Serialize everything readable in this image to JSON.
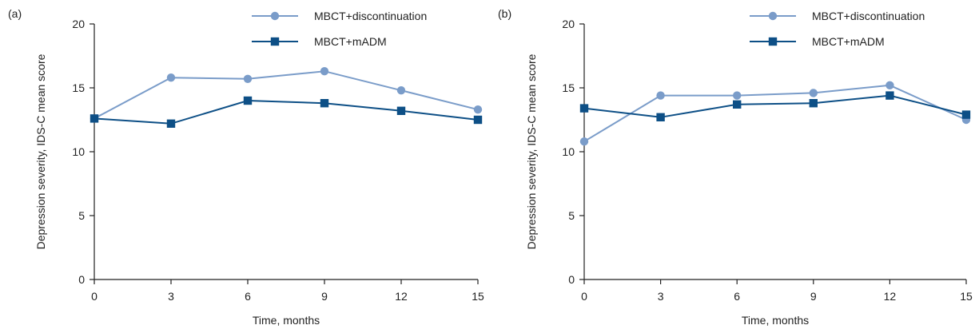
{
  "chart_data": [
    {
      "type": "line",
      "panel_label": "(a)",
      "xlabel": "Time, months",
      "ylabel": "Depression severity, IDS-C mean score",
      "x": [
        0,
        3,
        6,
        9,
        12,
        15
      ],
      "xticks": [
        "0",
        "3",
        "6",
        "9",
        "12",
        "15"
      ],
      "yticks": [
        "0",
        "5",
        "10",
        "15",
        "20"
      ],
      "xlim": [
        0,
        15
      ],
      "ylim": [
        0,
        20
      ],
      "grid": false,
      "legend_position": "top-right",
      "series": [
        {
          "name": "MBCT+discontinuation",
          "marker": "circle",
          "color": "#7a9cc9",
          "values": [
            12.6,
            15.8,
            15.7,
            16.3,
            14.8,
            13.3
          ]
        },
        {
          "name": "MBCT+mADM",
          "marker": "square",
          "color": "#0d4f86",
          "values": [
            12.6,
            12.2,
            14.0,
            13.8,
            13.2,
            12.5
          ]
        }
      ]
    },
    {
      "type": "line",
      "panel_label": "(b)",
      "xlabel": "Time, months",
      "ylabel": "Depression severity, IDS-C mean score",
      "x": [
        0,
        3,
        6,
        9,
        12,
        15
      ],
      "xticks": [
        "0",
        "3",
        "6",
        "9",
        "12",
        "15"
      ],
      "yticks": [
        "0",
        "5",
        "10",
        "15",
        "20"
      ],
      "xlim": [
        0,
        15
      ],
      "ylim": [
        0,
        20
      ],
      "grid": false,
      "legend_position": "top-right",
      "series": [
        {
          "name": "MBCT+discontinuation",
          "marker": "circle",
          "color": "#7a9cc9",
          "values": [
            10.8,
            14.4,
            14.4,
            14.6,
            15.2,
            12.5
          ]
        },
        {
          "name": "MBCT+mADM",
          "marker": "square",
          "color": "#0d4f86",
          "values": [
            13.4,
            12.7,
            13.7,
            13.8,
            14.4,
            12.9
          ]
        }
      ]
    }
  ]
}
